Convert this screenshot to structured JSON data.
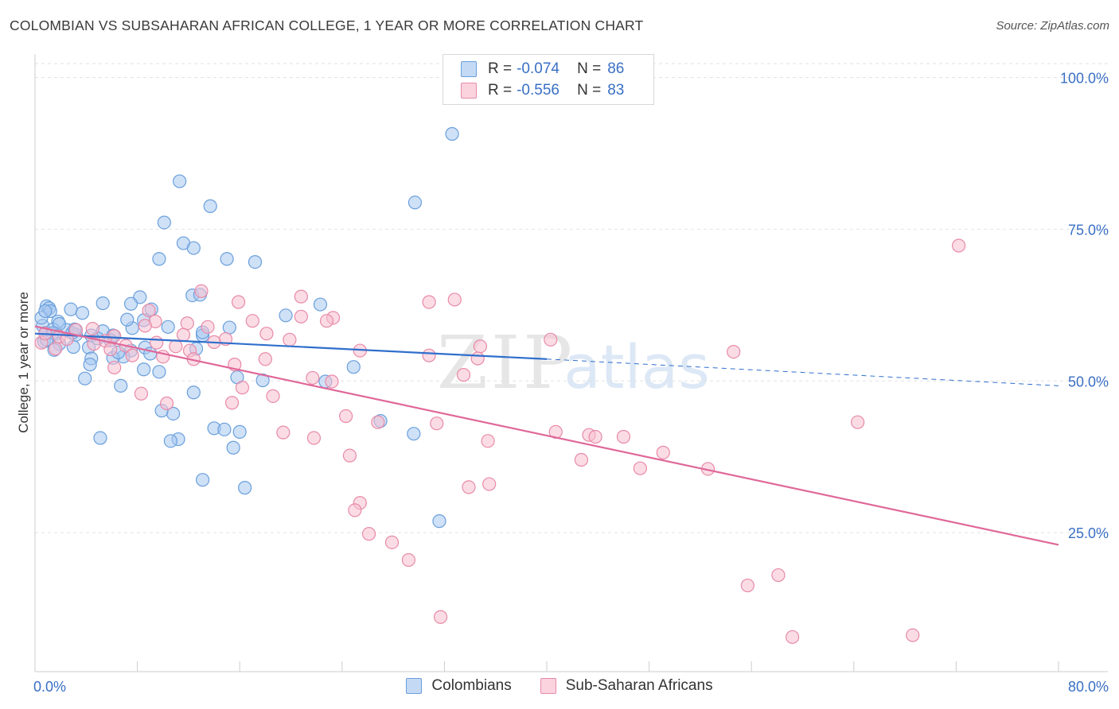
{
  "title": "COLOMBIAN VS SUBSAHARAN AFRICAN COLLEGE, 1 YEAR OR MORE CORRELATION CHART",
  "source": "Source: ZipAtlas.com",
  "watermark": {
    "zip": "ZIP",
    "atlas": "atlas"
  },
  "legend": {
    "rows": [
      {
        "r_label": "R =",
        "r_value": "-0.074",
        "n_label": "N =",
        "n_value": "86",
        "color": "#a8c8f0",
        "border": "#6a9fdc"
      },
      {
        "r_label": "R =",
        "r_value": "-0.556",
        "n_label": "N =",
        "n_value": "83",
        "color": "#f8c0d0",
        "border": "#e88aa8"
      }
    ]
  },
  "bottom_legend": [
    "Colombians",
    "Sub-Saharan Africans"
  ],
  "chart_data": {
    "type": "scatter",
    "title": "COLOMBIAN VS SUBSAHARAN AFRICAN COLLEGE, 1 YEAR OR MORE CORRELATION CHART",
    "xlabel": "",
    "ylabel": "College, 1 year or more",
    "xlim": [
      0,
      80
    ],
    "ylim": [
      0,
      105
    ],
    "x_tick_labels": [
      "0.0%",
      "80.0%"
    ],
    "y_tick_values": [
      25,
      50,
      75,
      100
    ],
    "y_tick_labels": [
      "25.0%",
      "50.0%",
      "75.0%",
      "100.0%"
    ],
    "grid": true,
    "series": [
      {
        "name": "Colombians",
        "color": "#6a9fdc",
        "fill": "#a8c8f0",
        "trend": {
          "x0": 0,
          "y0": 57.8,
          "x1": 40,
          "y1": 53.6,
          "dash_to_x": 80,
          "dash_to_y": 49.2,
          "color": "#2f6fcc"
        },
        "points": [
          [
            32.6,
            90.7
          ],
          [
            29.7,
            79.4
          ],
          [
            11.3,
            82.9
          ],
          [
            13.7,
            78.8
          ],
          [
            10.1,
            76.1
          ],
          [
            11.6,
            72.7
          ],
          [
            12.4,
            71.9
          ],
          [
            9.7,
            70.1
          ],
          [
            15.0,
            70.1
          ],
          [
            17.2,
            69.6
          ],
          [
            12.3,
            64.1
          ],
          [
            8.2,
            63.8
          ],
          [
            5.3,
            62.8
          ],
          [
            7.5,
            62.7
          ],
          [
            0.9,
            62.3
          ],
          [
            1.1,
            62.0
          ],
          [
            2.8,
            61.8
          ],
          [
            9.1,
            61.8
          ],
          [
            1.2,
            61.5
          ],
          [
            3.7,
            61.2
          ],
          [
            19.6,
            60.8
          ],
          [
            22.3,
            62.6
          ],
          [
            8.5,
            60.0
          ],
          [
            1.8,
            59.8
          ],
          [
            0.6,
            59.1
          ],
          [
            7.6,
            58.7
          ],
          [
            10.4,
            58.9
          ],
          [
            15.2,
            58.8
          ],
          [
            2.5,
            58.4
          ],
          [
            5.3,
            58.2
          ],
          [
            0.8,
            57.9
          ],
          [
            1.6,
            57.8
          ],
          [
            3.2,
            57.6
          ],
          [
            4.4,
            57.5
          ],
          [
            6.1,
            57.5
          ],
          [
            13.1,
            57.5
          ],
          [
            5.9,
            56.7
          ],
          [
            1.9,
            56.1
          ],
          [
            3.0,
            55.6
          ],
          [
            8.6,
            55.5
          ],
          [
            4.2,
            55.5
          ],
          [
            1.5,
            55.1
          ],
          [
            7.5,
            55.0
          ],
          [
            9.0,
            54.5
          ],
          [
            6.9,
            54.0
          ],
          [
            4.4,
            53.7
          ],
          [
            6.1,
            53.8
          ],
          [
            24.9,
            52.3
          ],
          [
            4.3,
            52.7
          ],
          [
            8.5,
            51.9
          ],
          [
            9.7,
            51.5
          ],
          [
            15.8,
            50.6
          ],
          [
            17.8,
            50.1
          ],
          [
            22.7,
            49.9
          ],
          [
            3.9,
            50.4
          ],
          [
            6.7,
            49.2
          ],
          [
            12.4,
            48.1
          ],
          [
            10.8,
            44.6
          ],
          [
            9.9,
            45.1
          ],
          [
            27.0,
            43.4
          ],
          [
            29.6,
            41.3
          ],
          [
            14.0,
            42.2
          ],
          [
            14.8,
            42.0
          ],
          [
            16.0,
            41.6
          ],
          [
            11.2,
            40.4
          ],
          [
            10.6,
            40.1
          ],
          [
            5.1,
            40.6
          ],
          [
            15.5,
            39.0
          ],
          [
            13.1,
            33.7
          ],
          [
            16.4,
            32.4
          ],
          [
            31.6,
            26.9
          ],
          [
            13.1,
            58.0
          ],
          [
            12.9,
            64.2
          ],
          [
            7.2,
            60.1
          ],
          [
            0.5,
            60.4
          ],
          [
            2.9,
            57.9
          ],
          [
            4.9,
            57.0
          ],
          [
            1.4,
            58.5
          ],
          [
            0.8,
            61.5
          ],
          [
            3.1,
            58.5
          ],
          [
            1.9,
            59.4
          ],
          [
            1.4,
            57.9
          ],
          [
            6.5,
            54.7
          ],
          [
            12.6,
            55.3
          ],
          [
            0.7,
            56.5
          ],
          [
            0.9,
            56.8
          ]
        ]
      },
      {
        "name": "Sub-Saharan Africans",
        "color": "#e88aa8",
        "fill": "#f8c0d0",
        "trend": {
          "x0": 0,
          "y0": 59.0,
          "x1": 80,
          "y1": 23.0,
          "color": "#e0689a"
        },
        "points": [
          [
            72.2,
            72.3
          ],
          [
            13.0,
            64.8
          ],
          [
            20.8,
            63.9
          ],
          [
            32.8,
            63.4
          ],
          [
            30.8,
            63.0
          ],
          [
            15.9,
            63.0
          ],
          [
            8.9,
            61.6
          ],
          [
            20.8,
            60.6
          ],
          [
            23.3,
            60.4
          ],
          [
            17.0,
            59.9
          ],
          [
            9.4,
            59.8
          ],
          [
            11.9,
            59.5
          ],
          [
            22.8,
            59.9
          ],
          [
            13.5,
            58.9
          ],
          [
            8.6,
            59.1
          ],
          [
            4.5,
            58.6
          ],
          [
            3.2,
            58.4
          ],
          [
            18.1,
            57.8
          ],
          [
            11.6,
            57.6
          ],
          [
            6.2,
            57.4
          ],
          [
            1.9,
            57.3
          ],
          [
            2.5,
            56.9
          ],
          [
            14.9,
            56.9
          ],
          [
            19.9,
            56.8
          ],
          [
            40.3,
            56.8
          ],
          [
            5.5,
            56.6
          ],
          [
            14.0,
            56.4
          ],
          [
            9.5,
            56.3
          ],
          [
            4.6,
            56.1
          ],
          [
            7.1,
            55.8
          ],
          [
            11.0,
            55.7
          ],
          [
            34.8,
            55.7
          ],
          [
            1.6,
            55.3
          ],
          [
            5.9,
            55.2
          ],
          [
            12.1,
            55.0
          ],
          [
            25.4,
            55.0
          ],
          [
            54.6,
            54.8
          ],
          [
            30.8,
            54.2
          ],
          [
            7.6,
            54.2
          ],
          [
            10.0,
            54.0
          ],
          [
            18.0,
            53.6
          ],
          [
            12.4,
            53.6
          ],
          [
            34.6,
            53.7
          ],
          [
            15.6,
            52.7
          ],
          [
            6.2,
            52.2
          ],
          [
            33.5,
            51.0
          ],
          [
            21.7,
            50.5
          ],
          [
            23.2,
            49.9
          ],
          [
            16.2,
            48.9
          ],
          [
            8.3,
            47.9
          ],
          [
            18.6,
            47.5
          ],
          [
            15.4,
            46.4
          ],
          [
            10.3,
            46.3
          ],
          [
            24.3,
            44.2
          ],
          [
            64.3,
            43.2
          ],
          [
            26.8,
            43.2
          ],
          [
            31.4,
            43.0
          ],
          [
            40.7,
            41.6
          ],
          [
            43.3,
            41.1
          ],
          [
            43.8,
            40.8
          ],
          [
            46.0,
            40.8
          ],
          [
            19.4,
            41.5
          ],
          [
            21.8,
            40.6
          ],
          [
            35.4,
            40.1
          ],
          [
            49.1,
            38.2
          ],
          [
            24.6,
            37.7
          ],
          [
            42.7,
            37.0
          ],
          [
            47.3,
            35.6
          ],
          [
            52.6,
            35.5
          ],
          [
            35.5,
            33.0
          ],
          [
            33.9,
            32.5
          ],
          [
            25.4,
            29.9
          ],
          [
            25.0,
            28.7
          ],
          [
            26.1,
            24.8
          ],
          [
            27.9,
            23.4
          ],
          [
            29.2,
            20.5
          ],
          [
            58.1,
            18.0
          ],
          [
            55.7,
            16.3
          ],
          [
            31.7,
            11.1
          ],
          [
            59.2,
            7.8
          ],
          [
            68.6,
            8.1
          ],
          [
            0.5,
            56.3
          ],
          [
            0.8,
            57.8
          ]
        ]
      }
    ]
  }
}
